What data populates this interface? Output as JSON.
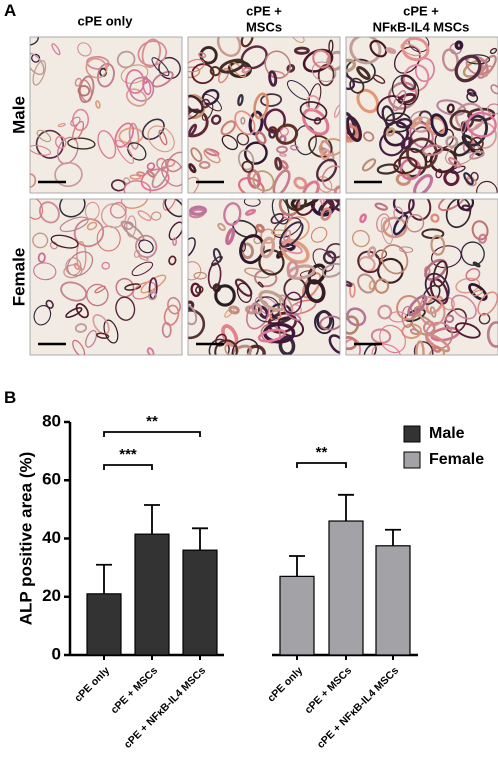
{
  "panel_a": {
    "label": "A",
    "columns": [
      [
        "cPE only"
      ],
      [
        "cPE +",
        "MSCs"
      ],
      [
        "cPE +",
        "NFκB-IL4 MSCs"
      ]
    ],
    "rows": [
      "Male",
      "Female"
    ]
  },
  "chart_data": {
    "type": "bar",
    "panel_label": "B",
    "y_label": "ALP positive area (%)",
    "categories": [
      "cPE only",
      "cPE + MSCs",
      "cPE + NFκB-IL4 MSCs",
      "cPE only",
      "cPE + MSCs",
      "cPE + NFκB-IL4 MSCs"
    ],
    "series": [
      {
        "name": "Male",
        "color": "#333333",
        "values": [
          21,
          41.5,
          36,
          null,
          null,
          null
        ],
        "errors": [
          10,
          10,
          7.5,
          null,
          null,
          null
        ]
      },
      {
        "name": "Female",
        "color": "#a2a2a7",
        "values": [
          null,
          null,
          null,
          27,
          46,
          37.5
        ],
        "errors": [
          null,
          null,
          null,
          7,
          9,
          5.5
        ]
      }
    ],
    "annotations": [
      "***",
      "**",
      "**"
    ],
    "ylim": [
      0,
      80
    ],
    "yticks": [
      0,
      20,
      40,
      60,
      80
    ],
    "legend": "top-right"
  }
}
